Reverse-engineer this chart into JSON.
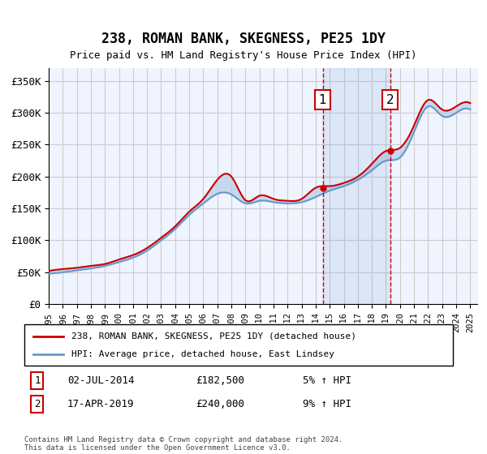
{
  "title": "238, ROMAN BANK, SKEGNESS, PE25 1DY",
  "subtitle": "Price paid vs. HM Land Registry's House Price Index (HPI)",
  "ylabel_ticks": [
    "£0",
    "£50K",
    "£100K",
    "£150K",
    "£200K",
    "£250K",
    "£300K",
    "£350K"
  ],
  "ylim": [
    0,
    370000
  ],
  "xlim_start": 1995,
  "xlim_end": 2025.5,
  "hpi_color": "#6699cc",
  "price_color": "#cc0000",
  "background_color": "#f0f4ff",
  "grid_color": "#cccccc",
  "marker1_x": 2014.5,
  "marker2_x": 2019.3,
  "marker1_y": 182500,
  "marker2_y": 240000,
  "legend_line1": "238, ROMAN BANK, SKEGNESS, PE25 1DY (detached house)",
  "legend_line2": "HPI: Average price, detached house, East Lindsey",
  "table_row1": [
    "1",
    "02-JUL-2014",
    "£182,500",
    "5% ↑ HPI"
  ],
  "table_row2": [
    "2",
    "17-APR-2019",
    "£240,000",
    "9% ↑ HPI"
  ],
  "footnote": "Contains HM Land Registry data © Crown copyright and database right 2024.\nThis data is licensed under the Open Government Licence v3.0.",
  "hpi_years": [
    1995,
    1996,
    1997,
    1998,
    1999,
    2000,
    2001,
    2002,
    2003,
    2004,
    2005,
    2006,
    2007,
    2008,
    2009,
    2010,
    2011,
    2012,
    2013,
    2014,
    2015,
    2016,
    2017,
    2018,
    2019,
    2020,
    2021,
    2022,
    2023,
    2024,
    2025
  ],
  "hpi_values": [
    48000,
    50000,
    53000,
    56000,
    60000,
    66000,
    73000,
    84000,
    100000,
    118000,
    140000,
    158000,
    173000,
    172000,
    158000,
    162000,
    160000,
    158000,
    160000,
    168000,
    178000,
    185000,
    195000,
    210000,
    225000,
    230000,
    270000,
    310000,
    295000,
    300000,
    305000
  ],
  "price_years": [
    1995,
    1996,
    1997,
    1998,
    1999,
    2000,
    2001,
    2002,
    2003,
    2004,
    2005,
    2006,
    2007,
    2008,
    2009,
    2010,
    2011,
    2012,
    2013,
    2014,
    2015,
    2016,
    2017,
    2018,
    2019,
    2020,
    2021,
    2022,
    2023,
    2024,
    2025
  ],
  "price_values": [
    52000,
    55000,
    57000,
    60000,
    63000,
    70000,
    77000,
    88000,
    104000,
    122000,
    145000,
    165000,
    195000,
    200000,
    163000,
    170000,
    165000,
    162000,
    165000,
    182500,
    185000,
    190000,
    200000,
    220000,
    240000,
    245000,
    280000,
    320000,
    305000,
    310000,
    315000
  ]
}
